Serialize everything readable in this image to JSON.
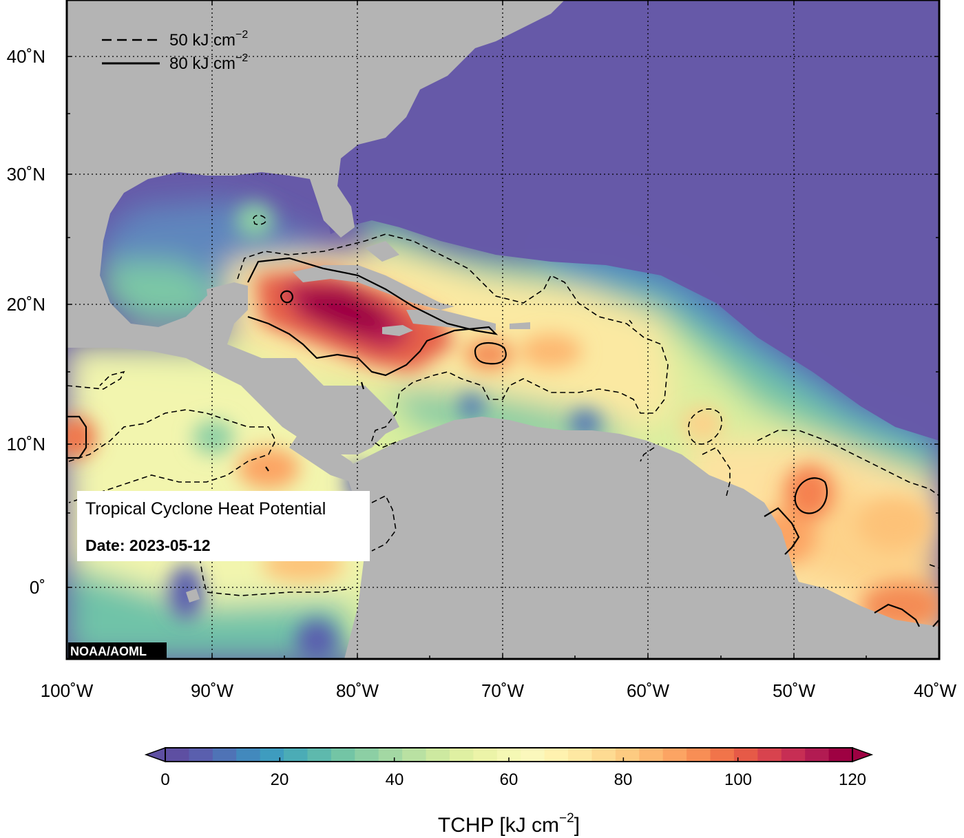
{
  "legend": {
    "items": [
      {
        "style": "dashed",
        "label": "50 kJ cm",
        "sup": "−2"
      },
      {
        "style": "solid",
        "label": "80 kJ cm",
        "sup": "−2"
      }
    ]
  },
  "info_box": {
    "title": "Tropical Cyclone Heat Potential",
    "date": "Date: 2023-05-12"
  },
  "credit": "NOAA/AOML",
  "lat_labels": [
    "40˚N",
    "30˚N",
    "20˚N",
    "10˚N",
    "0˚"
  ],
  "lon_labels": [
    "100˚W",
    "90˚W",
    "80˚W",
    "70˚W",
    "60˚W",
    "50˚W",
    "40˚W"
  ],
  "colorbar": {
    "ticks": [
      "0",
      "20",
      "40",
      "60",
      "80",
      "100",
      "120"
    ],
    "label": "TCHP [kJ cm",
    "label_sup": "−2",
    "label_end": "]",
    "colors": [
      "#5e4fa2",
      "#5a5fae",
      "#4f73b6",
      "#4289bd",
      "#3e9cbf",
      "#4bacb6",
      "#5eb9ad",
      "#73c5a5",
      "#8ccfa4",
      "#a3d8a3",
      "#b9e1a2",
      "#cde9a0",
      "#dff0a2",
      "#ecf4a8",
      "#f5f8b4",
      "#fbf8bc",
      "#fff2af",
      "#fee8a2",
      "#fedb92",
      "#fdcb81",
      "#fdb871",
      "#fca463",
      "#f88e55",
      "#f1744a",
      "#e65a47",
      "#d8434e",
      "#c72e54",
      "#b21b52",
      "#9e0142"
    ]
  },
  "colors": {
    "land": "#b4b4b4",
    "cold_ocean": "#6659a8"
  }
}
